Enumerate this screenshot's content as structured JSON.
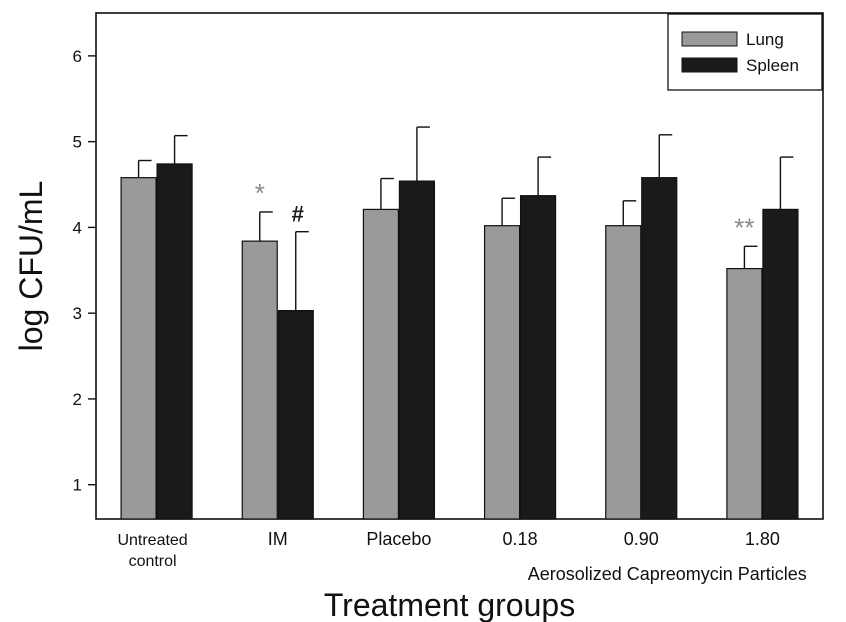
{
  "chart_data": {
    "type": "bar",
    "title": "",
    "xlabel": "Treatment groups",
    "ylabel": "log CFU/mL",
    "ylim": [
      0.6,
      6.5
    ],
    "yticks": [
      1,
      2,
      3,
      4,
      5,
      6
    ],
    "categories": [
      "Untreated\ncontrol",
      "IM",
      "Placebo",
      "0.18",
      "0.90",
      "1.80"
    ],
    "group_label": "Aerosolized Capreomycin Particles",
    "legend_position": "top-right",
    "grid": false,
    "series": [
      {
        "name": "Lung",
        "color": "#9a9a9a",
        "values": [
          4.58,
          3.84,
          4.21,
          4.02,
          4.02,
          3.52
        ],
        "errors": [
          0.2,
          0.34,
          0.36,
          0.32,
          0.29,
          0.26
        ]
      },
      {
        "name": "Spleen",
        "color": "#1a1a1a",
        "values": [
          4.74,
          3.03,
          4.54,
          4.37,
          4.58,
          4.21
        ],
        "errors": [
          0.33,
          0.92,
          0.63,
          0.45,
          0.5,
          0.61
        ]
      }
    ],
    "annotations": [
      {
        "text": "*",
        "category": 1,
        "series": 0,
        "color": "#8a8a8a"
      },
      {
        "text": "#",
        "category": 1,
        "series": 1,
        "color": "#1a1a1a"
      },
      {
        "text": "**",
        "category": 5,
        "series": 0,
        "color": "#8a8a8a"
      }
    ]
  }
}
